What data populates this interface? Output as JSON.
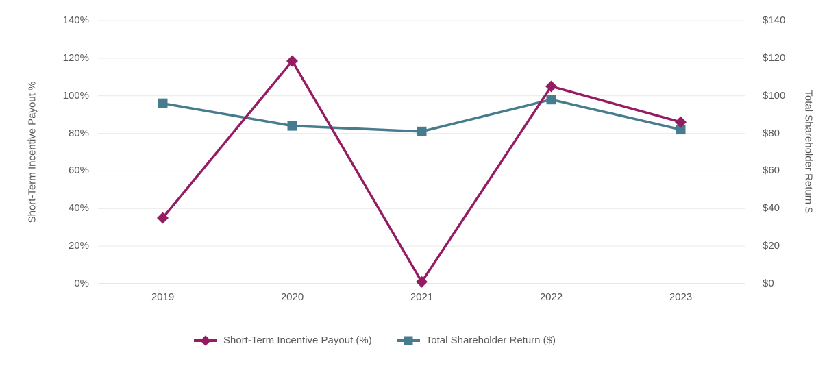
{
  "colors": {
    "sti_magenta": "#951b63",
    "tsr_blue": "#477c8e",
    "axis_text": "#595959",
    "gridline": "#e9e9e9",
    "baseline": "#d6d6d6"
  },
  "chart_data": {
    "type": "line",
    "title": "",
    "categories": [
      "2019",
      "2020",
      "2021",
      "2022",
      "2023"
    ],
    "series": [
      {
        "name": "Short-Term Incentive Payout (%)",
        "values": [
          35,
          118.5,
          1,
          105,
          86
        ],
        "color": "#951b63",
        "marker": "diamond",
        "axis": "left"
      },
      {
        "name": "Total Shareholder Return ($)",
        "values": [
          96,
          84,
          81,
          98,
          82
        ],
        "color": "#477c8e",
        "marker": "square",
        "axis": "right"
      }
    ],
    "left_axis": {
      "title": "Short-Term Incentive Payout %",
      "min": 0,
      "max": 140,
      "ticks": [
        "0%",
        "20%",
        "40%",
        "60%",
        "80%",
        "100%",
        "120%",
        "140%"
      ]
    },
    "right_axis": {
      "title": "Total Shareholder Return $",
      "min": 0,
      "max": 140,
      "ticks": [
        "$0",
        "$20",
        "$40",
        "$60",
        "$80",
        "$100",
        "$120",
        "$140"
      ]
    },
    "grid": true,
    "legend_position": "bottom"
  }
}
